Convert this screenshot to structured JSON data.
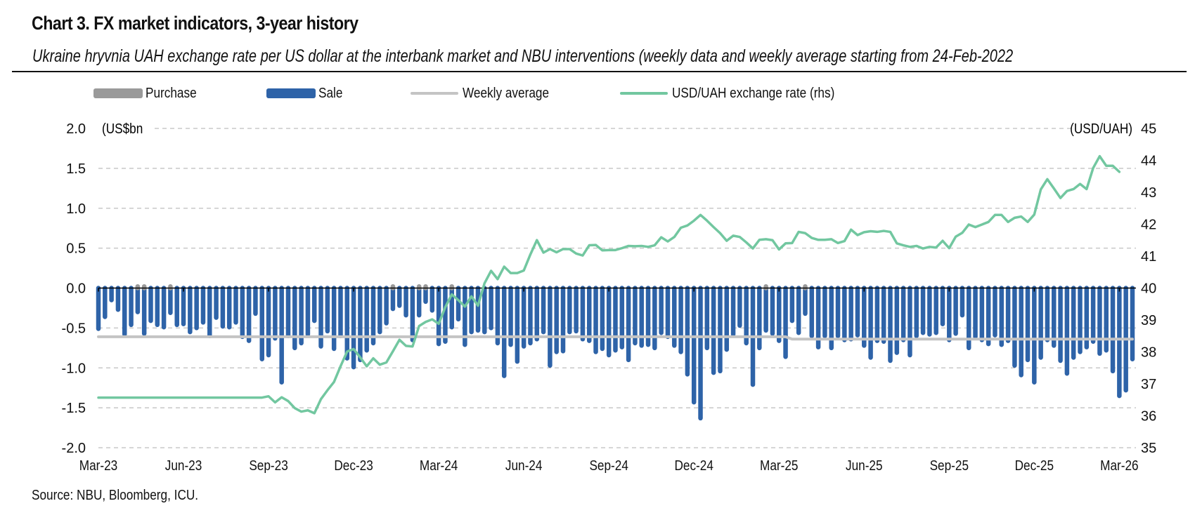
{
  "header": {
    "title": "Chart 3. FX market indicators, 3-year history",
    "subtitle": "Ukraine hryvnia UAH exchange rate per US dollar at the interbank market and NBU interventions (weekly data and weekly average starting from 24-Feb-2022"
  },
  "legend": [
    {
      "label": "Purchase",
      "kind": "swatch",
      "color": "#9a9a9a"
    },
    {
      "label": "Sale",
      "kind": "swatch",
      "color": "#2e63a8"
    },
    {
      "label": "Weekly average",
      "kind": "line",
      "color": "#c4c4c4"
    },
    {
      "label": "USD/UAH exchange rate (rhs)",
      "kind": "line",
      "color": "#72c7a0"
    }
  ],
  "footer": {
    "source": "Source: NBU, Bloomberg, ICU."
  },
  "chart_data": {
    "type": "bar+line",
    "title": "Chart 3. FX market indicators, 3-year history",
    "frequency": "weekly",
    "left_axis": {
      "label": "(US$bn",
      "min": -2.0,
      "max": 2.0,
      "ticks": [
        "2.0",
        "1.5",
        "1.0",
        "0.5",
        "0.0",
        "-0.5",
        "-1.0",
        "-1.5",
        "-2.0"
      ],
      "tick_values": [
        2.0,
        1.5,
        1.0,
        0.5,
        0.0,
        -0.5,
        -1.0,
        -1.5,
        -2.0
      ]
    },
    "right_axis": {
      "label": "(USD/UAH)",
      "min": 35,
      "max": 45,
      "ticks": [
        "45",
        "44",
        "43",
        "42",
        "41",
        "40",
        "39",
        "38",
        "37",
        "36",
        "35"
      ],
      "tick_values": [
        45,
        44,
        43,
        42,
        41,
        40,
        39,
        38,
        37,
        36,
        35
      ]
    },
    "x_axis": {
      "ticks": [
        "Mar-23",
        "Jun-23",
        "Sep-23",
        "Dec-23",
        "Mar-24",
        "Jun-24",
        "Sep-24",
        "Dec-24",
        "Mar-25",
        "Jun-25",
        "Sep-25",
        "Dec-25",
        "Mar-26"
      ],
      "weeks_per_tick": 13,
      "first_week_index": 0
    },
    "grid": "horizontal dashed",
    "legend_position": "top",
    "sale": [
      -0.51,
      -0.36,
      -0.15,
      -0.27,
      -0.58,
      -0.46,
      -0.3,
      -0.57,
      -0.41,
      -0.46,
      -0.49,
      -0.31,
      -0.46,
      -0.45,
      -0.55,
      -0.5,
      -0.43,
      -0.6,
      -0.37,
      -0.48,
      -0.49,
      -0.43,
      -0.61,
      -0.66,
      -0.32,
      -0.89,
      -0.84,
      -0.63,
      -1.18,
      -0.6,
      -0.75,
      -0.69,
      -0.58,
      -0.41,
      -0.73,
      -0.54,
      -0.76,
      -0.6,
      -0.88,
      -0.99,
      -0.9,
      -0.78,
      -0.69,
      -0.55,
      -0.44,
      -0.26,
      -0.22,
      -0.34,
      -0.65,
      -0.34,
      -0.17,
      -0.28,
      -0.7,
      -0.67,
      -0.49,
      -0.39,
      -0.71,
      -0.55,
      -0.53,
      -0.55,
      -0.5,
      -0.69,
      -1.1,
      -0.71,
      -0.92,
      -0.73,
      -0.69,
      -0.64,
      -0.55,
      -0.97,
      -0.8,
      -0.79,
      -0.55,
      -0.54,
      -0.64,
      -0.66,
      -0.8,
      -0.76,
      -0.84,
      -0.78,
      -0.74,
      -0.9,
      -0.69,
      -0.72,
      -0.71,
      -0.75,
      -0.56,
      -0.61,
      -0.72,
      -0.8,
      -1.08,
      -1.43,
      -1.63,
      -0.75,
      -1.06,
      -1.04,
      -0.77,
      -0.58,
      -0.47,
      -0.69,
      -1.21,
      -0.75,
      -0.53,
      -0.57,
      -0.66,
      -0.86,
      -0.41,
      -0.56,
      -0.32,
      -0.6,
      -0.74,
      -0.6,
      -0.75,
      -0.6,
      -0.65,
      -0.64,
      -0.59,
      -0.72,
      -0.87,
      -0.66,
      -0.67,
      -0.91,
      -0.81,
      -0.65,
      -0.84,
      -0.6,
      -0.56,
      -0.58,
      -0.56,
      -0.45,
      -0.65,
      -0.57,
      -0.34,
      -0.75,
      -0.61,
      -0.65,
      -0.7,
      -0.59,
      -0.71,
      -0.66,
      -0.97,
      -1.09,
      -0.9,
      -1.18,
      -0.87,
      -0.65,
      -0.72,
      -0.91,
      -1.07,
      -0.87,
      -0.8,
      -0.74,
      -0.67,
      -0.82,
      -0.78,
      -1.04,
      -1.35,
      -1.28,
      -0.89
    ],
    "purchase_weeks": [
      6,
      7,
      11,
      45,
      49,
      50,
      54,
      102,
      108
    ],
    "purchase_value": 0.02,
    "weekly_average": [
      {
        "from_week": 0,
        "to_week": 105,
        "value": -0.61
      },
      {
        "from_week": 106,
        "to_week": 158,
        "value": -0.64
      }
    ],
    "exchange_rate": [
      [
        0,
        36.57
      ],
      [
        25,
        36.57
      ],
      [
        26,
        36.61
      ],
      [
        27,
        36.42
      ],
      [
        28,
        36.58
      ],
      [
        29,
        36.46
      ],
      [
        30,
        36.24
      ],
      [
        31,
        36.13
      ],
      [
        32,
        36.17
      ],
      [
        33,
        36.08
      ],
      [
        34,
        36.52
      ],
      [
        35,
        36.8
      ],
      [
        36,
        37.06
      ],
      [
        37,
        37.55
      ],
      [
        38,
        38.01
      ],
      [
        39,
        38.09
      ],
      [
        40,
        37.83
      ],
      [
        41,
        37.55
      ],
      [
        42,
        37.8
      ],
      [
        43,
        37.6
      ],
      [
        44,
        37.67
      ],
      [
        45,
        38.02
      ],
      [
        46,
        38.38
      ],
      [
        47,
        38.19
      ],
      [
        48,
        38.17
      ],
      [
        49,
        38.81
      ],
      [
        50,
        38.94
      ],
      [
        51,
        39.02
      ],
      [
        52,
        38.88
      ],
      [
        53,
        39.4
      ],
      [
        54,
        39.8
      ],
      [
        55,
        39.62
      ],
      [
        56,
        39.42
      ],
      [
        57,
        39.74
      ],
      [
        58,
        39.45
      ],
      [
        59,
        40.15
      ],
      [
        60,
        40.54
      ],
      [
        61,
        40.28
      ],
      [
        62,
        40.67
      ],
      [
        63,
        40.47
      ],
      [
        64,
        40.47
      ],
      [
        65,
        40.55
      ],
      [
        66,
        41.05
      ],
      [
        67,
        41.5
      ],
      [
        68,
        41.11
      ],
      [
        69,
        41.22
      ],
      [
        70,
        41.12
      ],
      [
        71,
        41.22
      ],
      [
        72,
        41.22
      ],
      [
        73,
        41.08
      ],
      [
        74,
        41.02
      ],
      [
        75,
        41.34
      ],
      [
        76,
        41.35
      ],
      [
        77,
        41.18
      ],
      [
        78,
        41.19
      ],
      [
        79,
        41.19
      ],
      [
        80,
        41.25
      ],
      [
        81,
        41.32
      ],
      [
        82,
        41.31
      ],
      [
        83,
        41.32
      ],
      [
        84,
        41.29
      ],
      [
        85,
        41.34
      ],
      [
        86,
        41.59
      ],
      [
        87,
        41.46
      ],
      [
        88,
        41.6
      ],
      [
        89,
        41.89
      ],
      [
        90,
        41.96
      ],
      [
        91,
        42.11
      ],
      [
        92,
        42.29
      ],
      [
        93,
        42.11
      ],
      [
        94,
        41.91
      ],
      [
        95,
        41.72
      ],
      [
        96,
        41.48
      ],
      [
        97,
        41.64
      ],
      [
        98,
        41.6
      ],
      [
        99,
        41.43
      ],
      [
        100,
        41.24
      ],
      [
        101,
        41.51
      ],
      [
        102,
        41.53
      ],
      [
        103,
        41.5
      ],
      [
        104,
        41.21
      ],
      [
        105,
        41.4
      ],
      [
        106,
        41.41
      ],
      [
        107,
        41.76
      ],
      [
        108,
        41.72
      ],
      [
        109,
        41.57
      ],
      [
        110,
        41.51
      ],
      [
        111,
        41.51
      ],
      [
        112,
        41.53
      ],
      [
        113,
        41.41
      ],
      [
        114,
        41.47
      ],
      [
        115,
        41.83
      ],
      [
        116,
        41.66
      ],
      [
        117,
        41.75
      ],
      [
        118,
        41.78
      ],
      [
        119,
        41.76
      ],
      [
        120,
        41.79
      ],
      [
        121,
        41.76
      ],
      [
        122,
        41.4
      ],
      [
        123,
        41.34
      ],
      [
        124,
        41.29
      ],
      [
        125,
        41.32
      ],
      [
        126,
        41.24
      ],
      [
        127,
        41.29
      ],
      [
        128,
        41.27
      ],
      [
        129,
        41.48
      ],
      [
        130,
        41.25
      ],
      [
        131,
        41.61
      ],
      [
        132,
        41.73
      ],
      [
        133,
        41.99
      ],
      [
        134,
        41.91
      ],
      [
        135,
        41.99
      ],
      [
        136,
        42.07
      ],
      [
        137,
        42.29
      ],
      [
        138,
        42.29
      ],
      [
        139,
        42.07
      ],
      [
        140,
        42.2
      ],
      [
        141,
        42.24
      ],
      [
        142,
        42.07
      ],
      [
        143,
        42.3
      ],
      [
        144,
        43.09
      ],
      [
        145,
        43.41
      ],
      [
        146,
        43.12
      ],
      [
        147,
        42.82
      ],
      [
        148,
        43.04
      ],
      [
        149,
        43.1
      ],
      [
        150,
        43.26
      ],
      [
        151,
        43.1
      ],
      [
        152,
        43.76
      ],
      [
        153,
        44.13
      ],
      [
        154,
        43.83
      ],
      [
        155,
        43.83
      ],
      [
        156,
        43.64
      ]
    ],
    "colors": {
      "sale": "#2e63a8",
      "purchase": "#9a9a9a",
      "weekly_average": "#c4c4c4",
      "exchange_rate": "#72c7a0",
      "grid": "#c8c8c8",
      "axis": "#000000"
    }
  }
}
